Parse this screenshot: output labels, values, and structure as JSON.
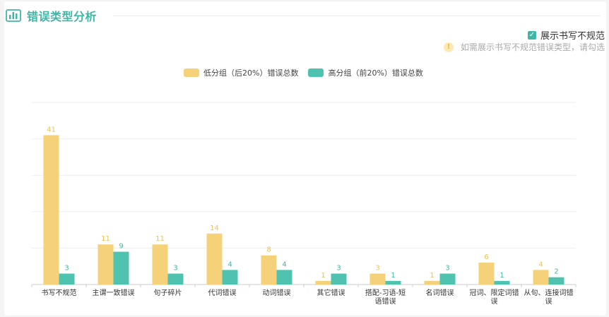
{
  "header": {
    "title": "错误类型分析",
    "logo_icon": "chart-logo-icon"
  },
  "toggle": {
    "label": "展示书写不规范",
    "checked": true
  },
  "hint": {
    "text": "如需展示书写不规范错误类型，请勾选"
  },
  "colors": {
    "low": "#f5d27a",
    "high": "#4fc3b0",
    "accent": "#3fb7a7"
  },
  "chart_data": {
    "type": "bar",
    "title": "",
    "categories": [
      [
        "书写不规范"
      ],
      [
        "主谓一致错误"
      ],
      [
        "句子碎片"
      ],
      [
        "代词错误"
      ],
      [
        "动词错误"
      ],
      [
        "其它错误"
      ],
      [
        "搭配-习语-短",
        "语错误"
      ],
      [
        "名词错误"
      ],
      [
        "冠词、限定词错",
        "误"
      ],
      [
        "从句、连接词错",
        "误"
      ]
    ],
    "series": [
      {
        "name": "低分组（后20%）错误总数",
        "values": [
          41,
          11,
          11,
          14,
          8,
          1,
          3,
          1,
          6,
          4
        ]
      },
      {
        "name": "高分组（前20%）错误总数",
        "values": [
          3,
          9,
          3,
          4,
          4,
          3,
          1,
          3,
          1,
          2
        ]
      }
    ],
    "ylim": [
      0,
      50
    ],
    "grid": true,
    "legend_position": "top-center"
  }
}
